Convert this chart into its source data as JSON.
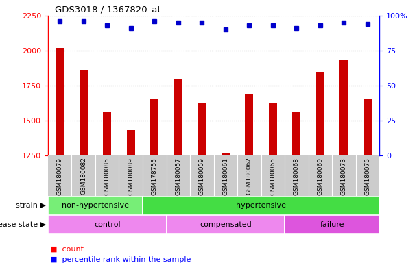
{
  "title": "GDS3018 / 1367820_at",
  "samples": [
    "GSM180079",
    "GSM180082",
    "GSM180085",
    "GSM180089",
    "GSM178755",
    "GSM180057",
    "GSM180059",
    "GSM180061",
    "GSM180062",
    "GSM180065",
    "GSM180068",
    "GSM180069",
    "GSM180073",
    "GSM180075"
  ],
  "counts": [
    2020,
    1860,
    1560,
    1430,
    1650,
    1800,
    1620,
    1265,
    1690,
    1620,
    1560,
    1845,
    1930,
    1650
  ],
  "percentiles": [
    96,
    96,
    93,
    91,
    96,
    95,
    95,
    90,
    93,
    93,
    91,
    93,
    95,
    94
  ],
  "ylim_left": [
    1250,
    2250
  ],
  "ylim_right": [
    0,
    100
  ],
  "yticks_left": [
    1250,
    1500,
    1750,
    2000,
    2250
  ],
  "yticks_right": [
    0,
    25,
    50,
    75,
    100
  ],
  "ytick_right_labels": [
    "0",
    "25",
    "50",
    "75",
    "100%"
  ],
  "bar_color": "#cc0000",
  "dot_color": "#0000cc",
  "strain_groups": [
    {
      "label": "non-hypertensive",
      "start": 0,
      "end": 4,
      "color": "#77ee77"
    },
    {
      "label": "hypertensive",
      "start": 4,
      "end": 14,
      "color": "#44dd44"
    }
  ],
  "disease_groups": [
    {
      "label": "control",
      "start": 0,
      "end": 5,
      "color": "#ee88ee"
    },
    {
      "label": "compensated",
      "start": 5,
      "end": 10,
      "color": "#ee88ee"
    },
    {
      "label": "failure",
      "start": 10,
      "end": 14,
      "color": "#dd55dd"
    }
  ],
  "strain_label": "strain",
  "disease_label": "disease state",
  "legend_count_label": "count",
  "legend_pct_label": "percentile rank within the sample",
  "grid_color": "#555555",
  "chart_bg": "#ffffff",
  "xticklabel_bg": "#cccccc"
}
